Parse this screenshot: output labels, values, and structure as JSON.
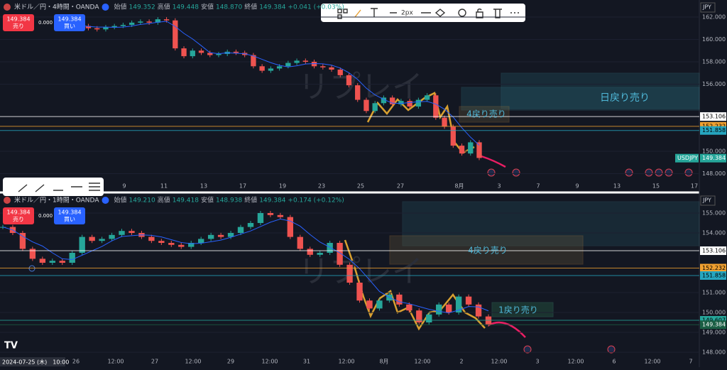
{
  "panels": [
    {
      "header": {
        "symbol": "米ドル／円・4時間・OANDA",
        "open_label": "始値",
        "open": "149.352",
        "high_label": "高値",
        "high": "149.448",
        "low_label": "安値",
        "low": "148.870",
        "close_label": "終値",
        "close": "149.384",
        "change": "+0.041 (+0.03%)"
      },
      "sell": {
        "price": "149.384",
        "label": "売り"
      },
      "spread": "0.000",
      "buy": {
        "price": "149.384",
        "label": "買い"
      },
      "currency": "JPY",
      "yticks": [
        {
          "value": 162,
          "label": "162.000"
        },
        {
          "value": 160,
          "label": "160.000"
        },
        {
          "value": 158,
          "label": "158.000"
        },
        {
          "value": 156,
          "label": "156.000"
        },
        {
          "value": 150,
          "label": "150.000"
        },
        {
          "value": 148,
          "label": "148.000"
        }
      ],
      "xticks": [
        "9",
        "11",
        "13",
        "17",
        "19",
        "23",
        "25",
        "27",
        "8月",
        "3",
        "7",
        "9",
        "13",
        "15",
        "17"
      ],
      "closes": [
        161.3,
        161.2,
        161.0,
        160.9,
        161.1,
        161.2,
        161.3,
        161.5,
        161.6,
        161.5,
        161.8,
        161.7,
        159.2,
        158.5,
        159.0,
        158.8,
        158.6,
        158.7,
        158.9,
        158.8,
        158.6,
        157.6,
        157.2,
        157.4,
        157.6,
        157.9,
        158.1,
        158.0,
        157.6,
        157.5,
        157.3,
        156.8,
        155.9,
        154.6,
        153.6,
        154.3,
        154.8,
        154.2,
        154.5,
        154.0,
        154.6,
        155.0,
        153.0,
        152.2,
        150.5,
        149.8,
        150.8,
        149.4
      ],
      "levels": [
        {
          "value": 153.106
        },
        {
          "value": 152.232
        },
        {
          "value": 151.858
        },
        {
          "symbol": "USDJPY",
          "value": 149.384
        }
      ],
      "annotations": [
        "日戻り売り",
        "4戻り売り"
      ],
      "watermark": "リプレイ",
      "toolbar": "2px"
    },
    {
      "header": {
        "symbol": "米ドル／円・1時間・OANDA",
        "open_label": "始値",
        "open": "149.210",
        "high_label": "高値",
        "high": "149.418",
        "low_label": "安値",
        "low": "148.938",
        "close_label": "終値",
        "close": "149.384",
        "change": "+0.174 (+0.12%)"
      },
      "sell": {
        "price": "149.384",
        "label": "売り"
      },
      "spread": "0.000",
      "buy": {
        "price": "149.384",
        "label": "買い"
      },
      "currency": "JPY",
      "yticks": [
        {
          "value": 155,
          "label": "155.000"
        },
        {
          "value": 154,
          "label": "154.000"
        },
        {
          "value": 151,
          "label": "151.000"
        },
        {
          "value": 150,
          "label": "150.000"
        },
        {
          "value": 149,
          "label": "149.000"
        },
        {
          "value": 148,
          "label": "148.000"
        }
      ],
      "xticks": [
        "26",
        "12:00",
        "27",
        "12:00",
        "29",
        "12:00",
        "31",
        "12:00",
        "8月",
        "12:00",
        "2",
        "12:00",
        "3",
        "12:00",
        "6",
        "12:00",
        "7"
      ],
      "date": "2024-07-25 (木)　10:00",
      "closes": [
        154.3,
        154.0,
        153.2,
        152.7,
        152.5,
        152.6,
        152.5,
        153.0,
        153.8,
        153.6,
        153.7,
        153.9,
        154.1,
        154.0,
        153.8,
        153.6,
        153.5,
        153.4,
        153.3,
        153.5,
        153.7,
        153.9,
        153.8,
        154.0,
        154.3,
        154.5,
        155.0,
        154.9,
        154.8,
        153.8,
        153.2,
        152.9,
        153.0,
        153.5,
        152.4,
        151.5,
        150.6,
        150.2,
        150.6,
        150.9,
        150.4,
        150.1,
        149.5,
        149.9,
        150.4,
        150.0,
        150.8,
        150.4,
        149.8,
        149.4
      ],
      "levels": [
        {
          "value": 153.106
        },
        {
          "value": 152.232
        },
        {
          "value": 151.858
        },
        {
          "value": 149.607
        },
        {
          "value": 149.384
        }
      ],
      "annotations": [
        "4戻り売り",
        "1戻り売り"
      ],
      "watermark": "リプレイ"
    }
  ]
}
